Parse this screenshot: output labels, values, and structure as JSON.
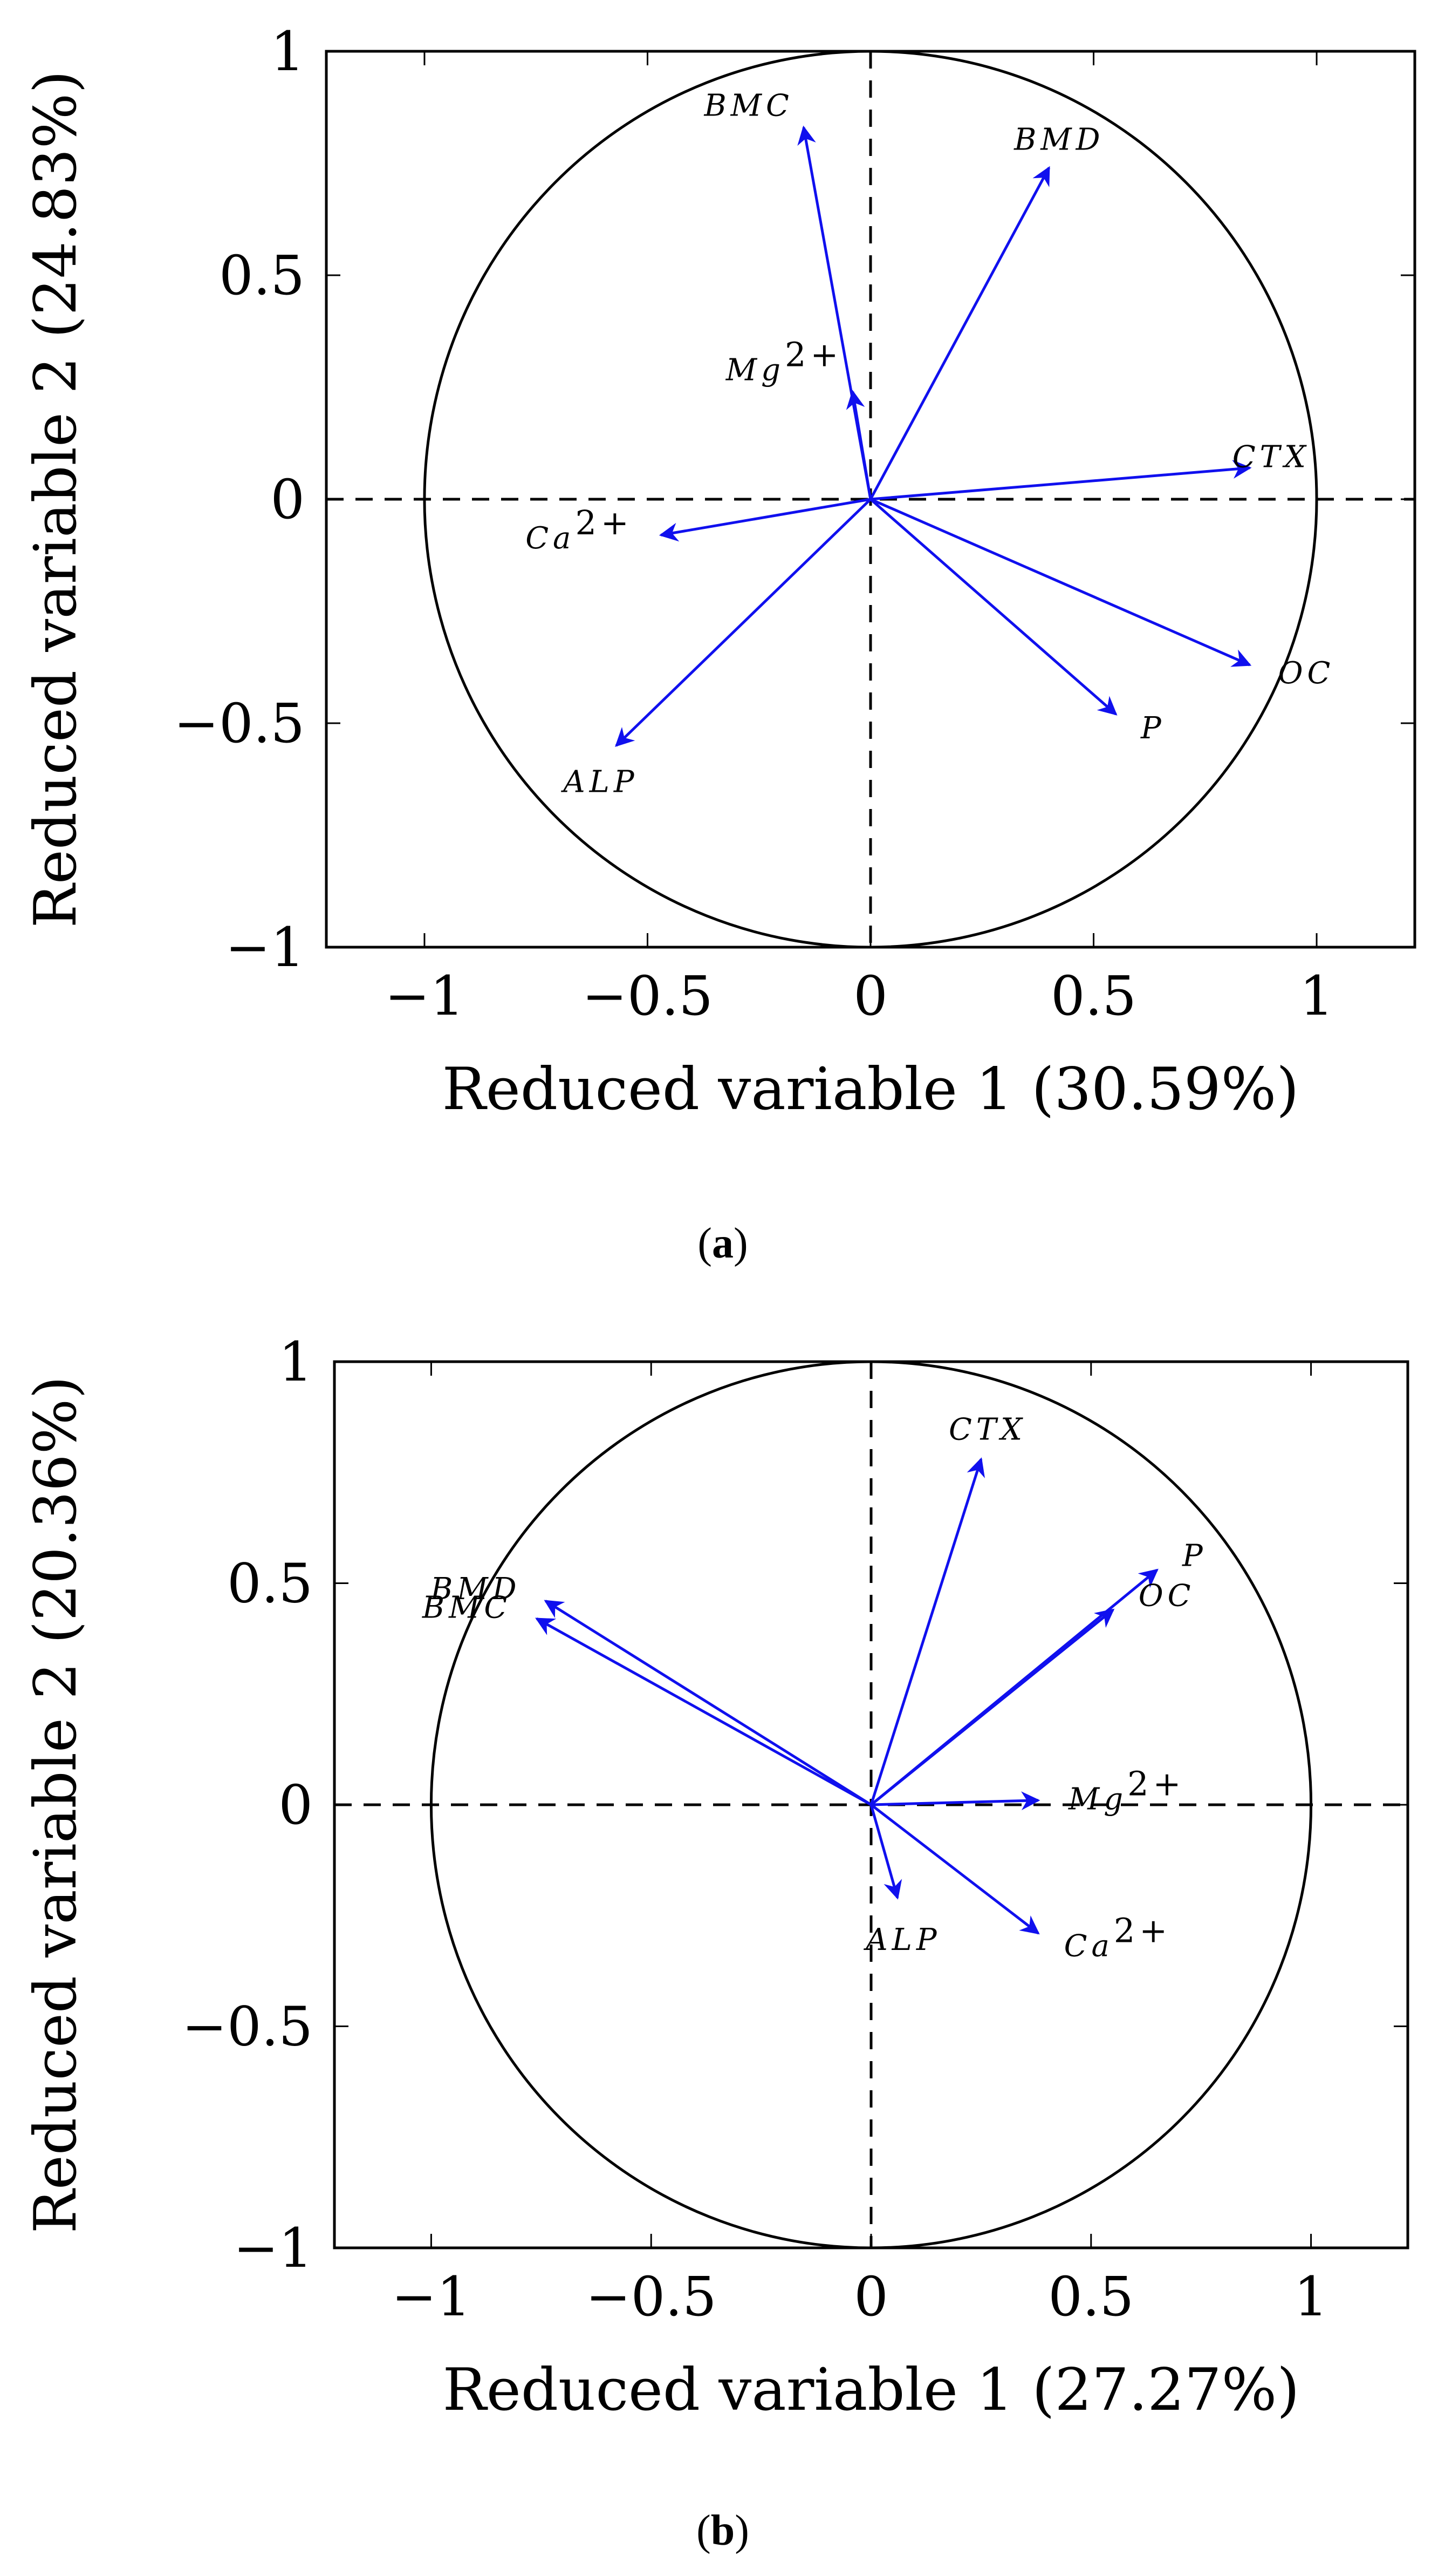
{
  "colors": {
    "vector": "#1010ee",
    "frame": "#000000",
    "background": "#ffffff"
  },
  "chart_data": [
    {
      "type": "scatter",
      "subtype": "pca-correlation-circle",
      "caption": "a",
      "xlabel": "Reduced variable 1 (30.59%)",
      "ylabel": "Reduced variable 2 (24.83%)",
      "xlim": [
        -1.22,
        1.22
      ],
      "ylim": [
        -1,
        1
      ],
      "xticks": [
        -1,
        -0.5,
        0,
        0.5,
        1
      ],
      "xtick_labels": [
        "−1",
        "−0.5",
        "0",
        "0.5",
        "1"
      ],
      "yticks": [
        -1,
        -0.5,
        0,
        0.5,
        1
      ],
      "ytick_labels": [
        "−1",
        "−0.5",
        "0",
        "0.5",
        "1"
      ],
      "unit_circle": true,
      "dashed_axes": true,
      "vectors": [
        {
          "name": "BMC",
          "base": "BMC",
          "sup": "",
          "x": -0.15,
          "y": 0.83,
          "anchor": "end"
        },
        {
          "name": "BMD",
          "base": "BMD",
          "sup": "",
          "x": 0.4,
          "y": 0.74,
          "anchor": "middle"
        },
        {
          "name": "Mg2+",
          "base": "Mg",
          "sup": "2+",
          "x": -0.04,
          "y": 0.24,
          "anchor": "end"
        },
        {
          "name": "CTX",
          "base": "CTX",
          "sup": "",
          "x": 0.85,
          "y": 0.07,
          "anchor": "middle"
        },
        {
          "name": "Ca2+",
          "base": "Ca",
          "sup": "2+",
          "x": -0.47,
          "y": -0.08,
          "anchor": "end"
        },
        {
          "name": "OC",
          "base": "OC",
          "sup": "",
          "x": 0.85,
          "y": -0.37,
          "anchor": "start"
        },
        {
          "name": "P",
          "base": "P",
          "sup": "",
          "x": 0.55,
          "y": -0.48,
          "anchor": "start"
        },
        {
          "name": "ALP",
          "base": "ALP",
          "sup": "",
          "x": -0.57,
          "y": -0.55,
          "anchor": "middle"
        }
      ]
    },
    {
      "type": "scatter",
      "subtype": "pca-correlation-circle",
      "caption": "b",
      "xlabel": "Reduced variable 1 (27.27%)",
      "ylabel": "Reduced variable 2 (20.36%)",
      "xlim": [
        -1.22,
        1.22
      ],
      "ylim": [
        -1,
        1
      ],
      "xticks": [
        -1,
        -0.5,
        0,
        0.5,
        1
      ],
      "xtick_labels": [
        "−1",
        "−0.5",
        "0",
        "0.5",
        "1"
      ],
      "yticks": [
        -1,
        -0.5,
        0,
        0.5,
        1
      ],
      "ytick_labels": [
        "−1",
        "−0.5",
        "0",
        "0.5",
        "1"
      ],
      "unit_circle": true,
      "dashed_axes": true,
      "vectors": [
        {
          "name": "CTX",
          "base": "CTX",
          "sup": "",
          "x": 0.25,
          "y": 0.78,
          "anchor": "middle"
        },
        {
          "name": "P",
          "base": "P",
          "sup": "",
          "x": 0.65,
          "y": 0.53,
          "anchor": "start"
        },
        {
          "name": "OC",
          "base": "OC",
          "sup": "",
          "x": 0.55,
          "y": 0.44,
          "anchor": "start"
        },
        {
          "name": "BMD",
          "base": "BMD",
          "sup": "",
          "x": -0.74,
          "y": 0.46,
          "anchor": "end"
        },
        {
          "name": "BMC",
          "base": "BMC",
          "sup": "",
          "x": -0.76,
          "y": 0.42,
          "anchor": "end"
        },
        {
          "name": "Mg2+",
          "base": "Mg",
          "sup": "2+",
          "x": 0.38,
          "y": 0.01,
          "anchor": "start"
        },
        {
          "name": "ALP",
          "base": "ALP",
          "sup": "",
          "x": 0.06,
          "y": -0.21,
          "anchor": "middle"
        },
        {
          "name": "Ca2+",
          "base": "Ca",
          "sup": "2+",
          "x": 0.38,
          "y": -0.29,
          "anchor": "start"
        }
      ]
    }
  ]
}
